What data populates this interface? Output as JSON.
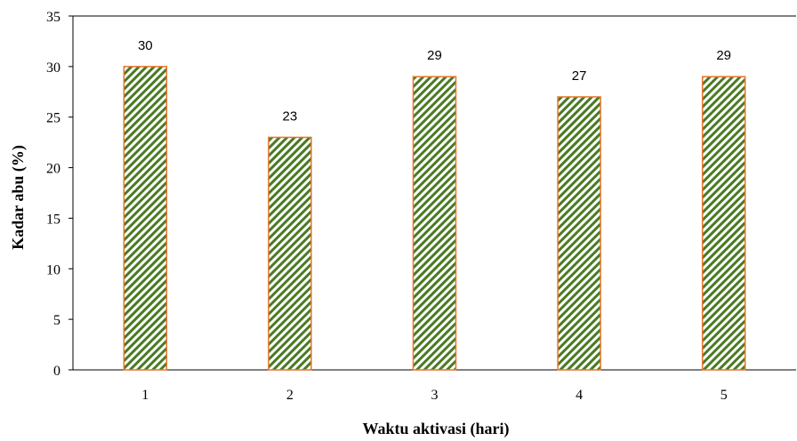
{
  "chart_data": {
    "type": "bar",
    "categories": [
      "1",
      "2",
      "3",
      "4",
      "5"
    ],
    "values": [
      30,
      23,
      29,
      27,
      29
    ],
    "data_labels": [
      "30",
      "23",
      "29",
      "27",
      "29"
    ],
    "title": "",
    "xlabel": "Waktu aktivasi (hari)",
    "ylabel": "Kadar abu (%)",
    "ylim": [
      0,
      35
    ],
    "yticks": [
      "0",
      "5",
      "10",
      "15",
      "20",
      "25",
      "30",
      "35"
    ],
    "grid": false,
    "colors": {
      "bar_fill": "#4a7a22",
      "bar_stripe_bg": "#ffffff",
      "bar_border": "#e8742a",
      "axis": "#000000"
    }
  }
}
